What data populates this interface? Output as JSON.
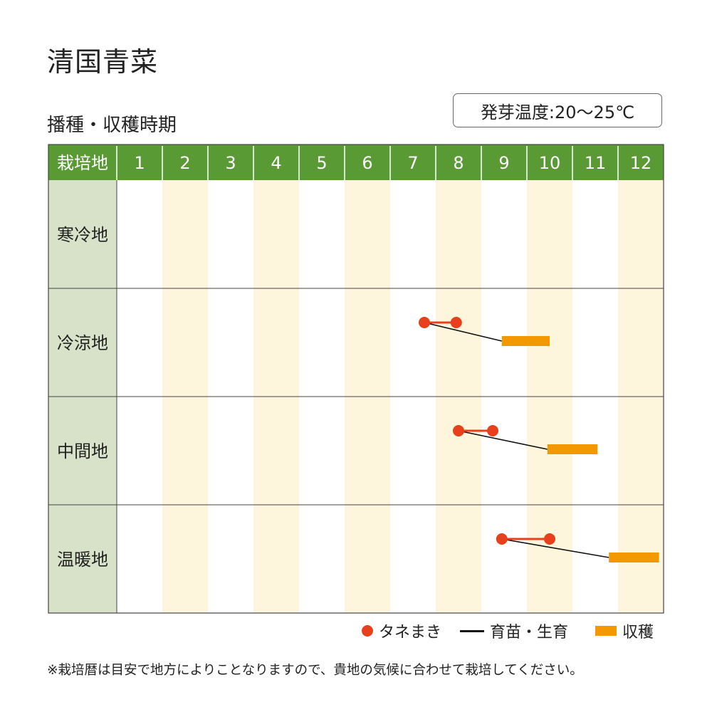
{
  "title": "清国青菜",
  "subtitle": "播種・収穫時期",
  "germination_temp": "発芽温度:20〜25℃",
  "note": "※栽培暦は目安で地方によりことなりますので、貴地の気候に合わせて栽培してください。",
  "legend": {
    "sowing": "タネまき",
    "growing": "育苗・生育",
    "harvest": "収穫"
  },
  "colors": {
    "header_green": "#5a9a35",
    "row_label_bg": "#d8e2c8",
    "stripe": "#fdf5dc",
    "sowing": "#e8401c",
    "harvest": "#f39800",
    "growing_line": "#111111"
  },
  "chart_data": {
    "type": "table",
    "header_label": "栽培地",
    "months": [
      "1",
      "2",
      "3",
      "4",
      "5",
      "6",
      "7",
      "8",
      "9",
      "10",
      "11",
      "12"
    ],
    "regions": [
      {
        "name": "寒冷地",
        "sowing": null,
        "harvest": null
      },
      {
        "name": "冷涼地",
        "sowing": [
          7.75,
          8.45
        ],
        "harvest": [
          9.45,
          10.5
        ]
      },
      {
        "name": "中間地",
        "sowing": [
          8.5,
          9.25
        ],
        "harvest": [
          10.45,
          11.55
        ]
      },
      {
        "name": "温暖地",
        "sowing": [
          9.45,
          10.5
        ],
        "harvest": [
          11.8,
          12.9
        ]
      }
    ]
  }
}
